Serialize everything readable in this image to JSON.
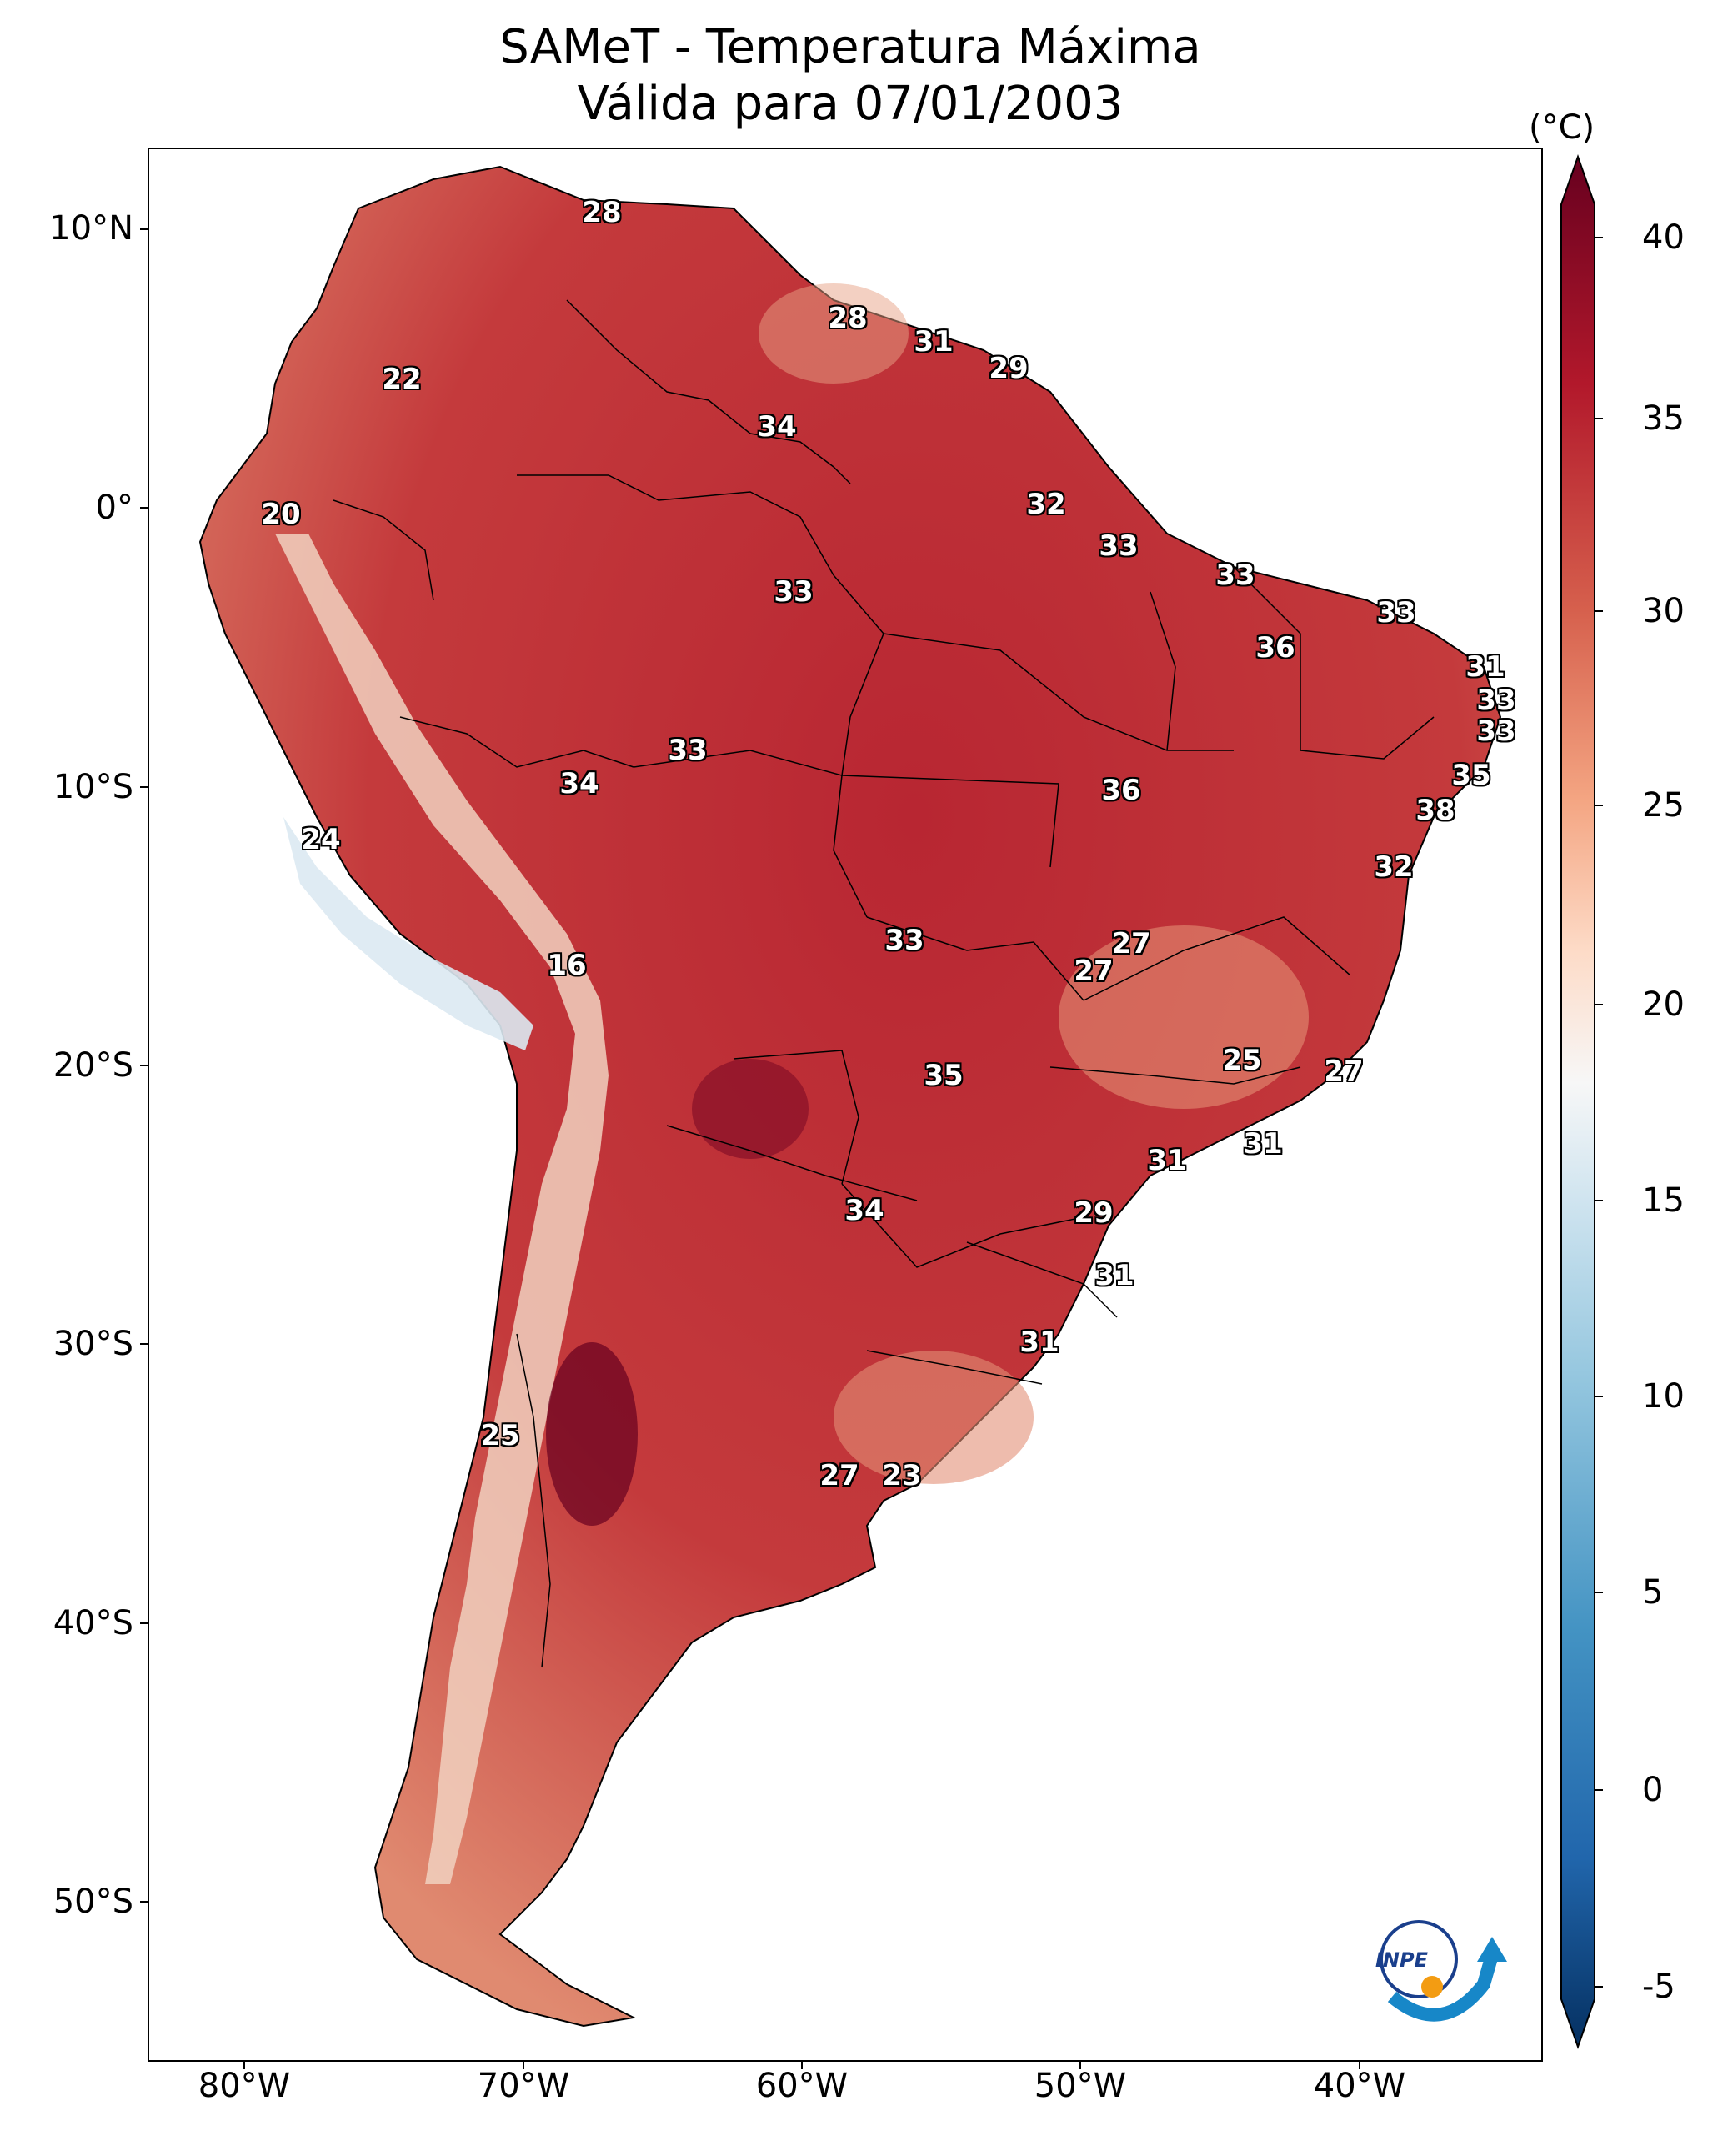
{
  "title": {
    "line1": "SAMeT - Temperatura Máxima",
    "line2": "Válida para 07/01/2003"
  },
  "colorbar": {
    "unit": "(°C)",
    "ticks": [
      "40",
      "35",
      "30",
      "25",
      "20",
      "15",
      "10",
      "5",
      "0",
      "-5"
    ],
    "range": [
      -7,
      41
    ],
    "colormap": "RdBu_r",
    "colors": [
      "#053061",
      "#2166ac",
      "#4393c3",
      "#92c5de",
      "#d1e5f0",
      "#f7f7f7",
      "#fddbc7",
      "#f4a582",
      "#d6604d",
      "#b2182b",
      "#67001f"
    ]
  },
  "axes": {
    "lat_ticks": [
      "10°N",
      "0°",
      "10°S",
      "20°S",
      "30°S",
      "40°S",
      "50°S"
    ],
    "lon_ticks": [
      "80°W",
      "70°W",
      "60°W",
      "50°W",
      "40°W"
    ]
  },
  "labels": [
    "28",
    "28",
    "31",
    "29",
    "22",
    "34",
    "20",
    "32",
    "33",
    "33",
    "33",
    "33",
    "36",
    "31",
    "33",
    "33",
    "33",
    "34",
    "36",
    "35",
    "24",
    "38",
    "32",
    "16",
    "33",
    "27",
    "27",
    "25",
    "27",
    "35",
    "31",
    "31",
    "34",
    "29",
    "31",
    "31",
    "25",
    "27",
    "23"
  ],
  "logo": {
    "text": "INPE",
    "name": "inpe-logo"
  }
}
